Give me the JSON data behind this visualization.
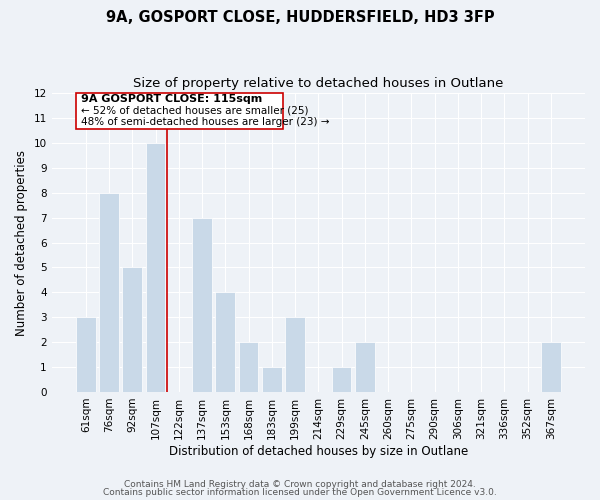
{
  "title": "9A, GOSPORT CLOSE, HUDDERSFIELD, HD3 3FP",
  "subtitle": "Size of property relative to detached houses in Outlane",
  "xlabel": "Distribution of detached houses by size in Outlane",
  "ylabel": "Number of detached properties",
  "bar_labels": [
    "61sqm",
    "76sqm",
    "92sqm",
    "107sqm",
    "122sqm",
    "137sqm",
    "153sqm",
    "168sqm",
    "183sqm",
    "199sqm",
    "214sqm",
    "229sqm",
    "245sqm",
    "260sqm",
    "275sqm",
    "290sqm",
    "306sqm",
    "321sqm",
    "336sqm",
    "352sqm",
    "367sqm"
  ],
  "bar_values": [
    3,
    8,
    5,
    10,
    0,
    7,
    4,
    2,
    1,
    3,
    0,
    1,
    2,
    0,
    0,
    0,
    0,
    0,
    0,
    0,
    2
  ],
  "bar_color": "#c9d9e8",
  "bar_edge_color": "#ffffff",
  "ylim": [
    0,
    12
  ],
  "yticks": [
    0,
    1,
    2,
    3,
    4,
    5,
    6,
    7,
    8,
    9,
    10,
    11,
    12
  ],
  "vline_x_index": 3.5,
  "vline_color": "#cc0000",
  "annotation_title": "9A GOSPORT CLOSE: 115sqm",
  "annotation_line1": "← 52% of detached houses are smaller (25)",
  "annotation_line2": "48% of semi-detached houses are larger (23) →",
  "annotation_box_color": "#ffffff",
  "annotation_border_color": "#cc0000",
  "footer_line1": "Contains HM Land Registry data © Crown copyright and database right 2024.",
  "footer_line2": "Contains public sector information licensed under the Open Government Licence v3.0.",
  "background_color": "#eef2f7",
  "plot_background": "#eef2f7",
  "grid_color": "#ffffff",
  "title_fontsize": 10.5,
  "subtitle_fontsize": 9.5,
  "axis_label_fontsize": 8.5,
  "tick_fontsize": 7.5,
  "annotation_title_fontsize": 8,
  "annotation_text_fontsize": 7.5,
  "footer_fontsize": 6.5
}
